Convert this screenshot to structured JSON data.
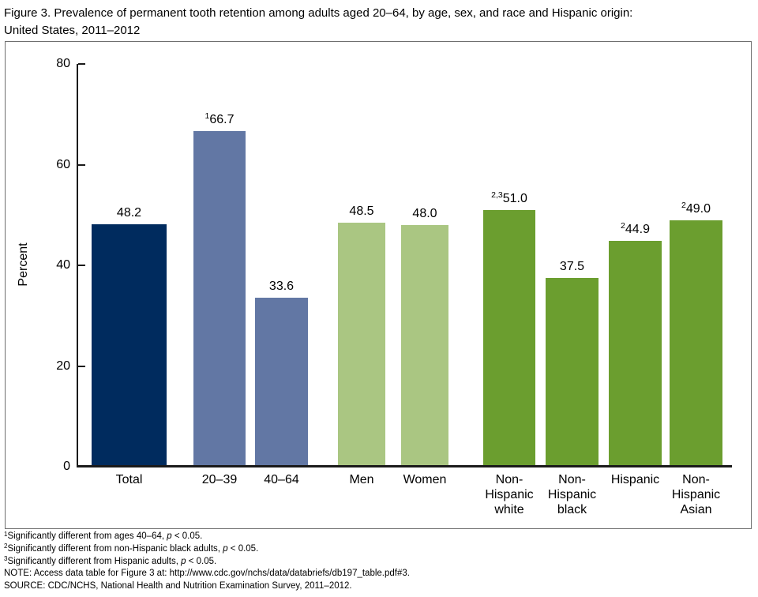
{
  "title_lines": [
    "Figure 3. Prevalence of permanent tooth retention among adults aged 20–64, by age, sex, and race and Hispanic origin:",
    "United States, 2011–2012"
  ],
  "chart_data": {
    "type": "bar",
    "title": "Figure 3. Prevalence of permanent tooth retention among adults aged 20–64, by age, sex, and race and Hispanic origin: United States, 2011–2012",
    "xlabel": "",
    "ylabel": "Percent",
    "ylim": [
      0,
      80
    ],
    "yticks": [
      0,
      20,
      40,
      60,
      80
    ],
    "grid": false,
    "legend": false,
    "categories": [
      "Total",
      "20–39",
      "40–64",
      "Men",
      "Women",
      "Non-\nHispanic\nwhite",
      "Non-\nHispanic\nblack",
      "Hispanic",
      "Non-\nHispanic\nAsian"
    ],
    "bars": [
      {
        "label": "Total",
        "value": 48.2,
        "sup": "",
        "group": "total"
      },
      {
        "label": "20–39",
        "value": 66.7,
        "sup": "1",
        "group": "age"
      },
      {
        "label": "40–64",
        "value": 33.6,
        "sup": "",
        "group": "age"
      },
      {
        "label": "Men",
        "value": 48.5,
        "sup": "",
        "group": "sex"
      },
      {
        "label": "Women",
        "value": 48.0,
        "sup": "",
        "group": "sex"
      },
      {
        "label": "Non-\nHispanic\nwhite",
        "value": 51.0,
        "sup": "2,3",
        "group": "race"
      },
      {
        "label": "Non-\nHispanic\nblack",
        "value": 37.5,
        "sup": "",
        "group": "race"
      },
      {
        "label": "Hispanic",
        "value": 44.9,
        "sup": "2",
        "group": "race"
      },
      {
        "label": "Non-\nHispanic\nAsian",
        "value": 49.0,
        "sup": "2",
        "group": "race"
      }
    ],
    "colors": {
      "total": "#002b5e",
      "age": "#6277a4",
      "sex": "#aac682",
      "race": "#6b9e2f",
      "axis": "#1a1a1a"
    }
  },
  "footnotes": [
    {
      "segments": [
        {
          "t": "1",
          "s": "sup"
        },
        {
          "t": "Significantly different from ages 40–64, ",
          "s": "n"
        },
        {
          "t": "p",
          "s": "i"
        },
        {
          "t": " < 0.05.",
          "s": "n"
        }
      ]
    },
    {
      "segments": [
        {
          "t": "2",
          "s": "sup"
        },
        {
          "t": "Significantly different from non-Hispanic black adults, ",
          "s": "n"
        },
        {
          "t": "p",
          "s": "i"
        },
        {
          "t": " < 0.05.",
          "s": "n"
        }
      ]
    },
    {
      "segments": [
        {
          "t": "3",
          "s": "sup"
        },
        {
          "t": "Significantly different from Hispanic adults, ",
          "s": "n"
        },
        {
          "t": "p",
          "s": "i"
        },
        {
          "t": " < 0.05.",
          "s": "n"
        }
      ]
    },
    {
      "segments": [
        {
          "t": "NOTE: Access data table for Figure 3 at: http://www.cdc.gov/nchs/data/databriefs/db197_table.pdf#3.",
          "s": "n"
        }
      ]
    },
    {
      "segments": [
        {
          "t": "SOURCE: CDC/NCHS, National Health and Nutrition Examination Survey, 2011–2012.",
          "s": "n"
        }
      ]
    }
  ]
}
